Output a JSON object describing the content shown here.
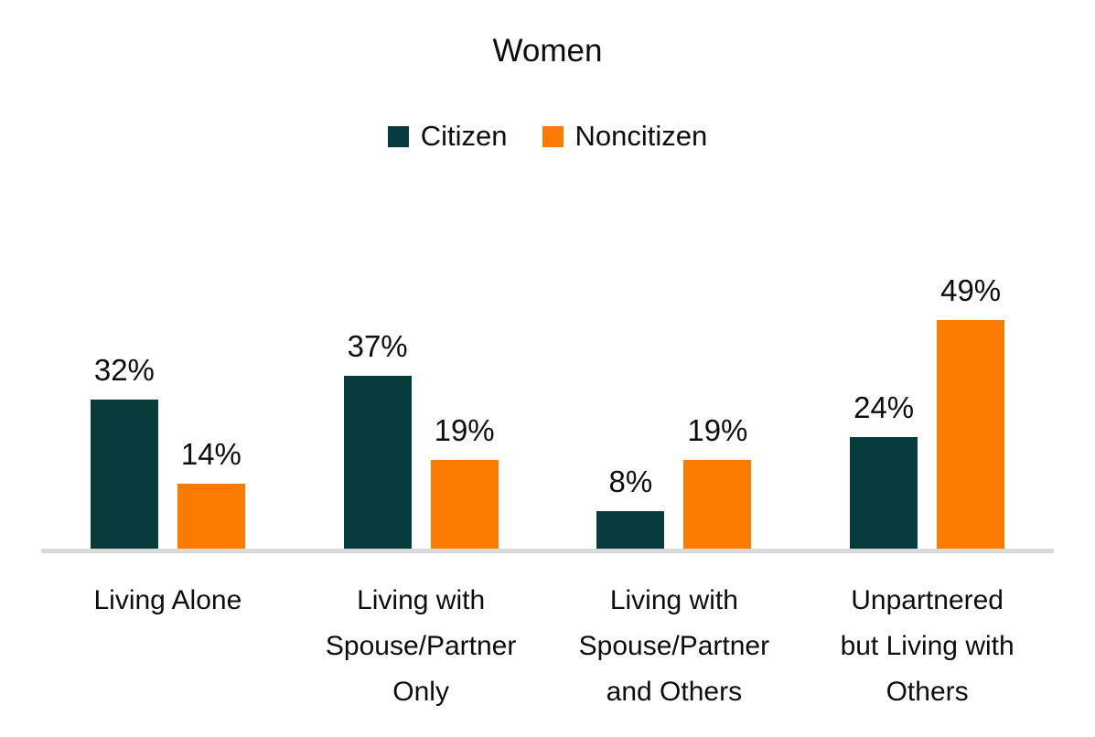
{
  "chart": {
    "title": "Women",
    "legend": {
      "citizen_label": "Citizen",
      "noncitizen_label": "Noncitizen"
    },
    "colors": {
      "citizen": "#073b3c",
      "noncitizen": "#fb7a00",
      "axis_line": "#d9d9d9",
      "text": "#0d0d0d"
    },
    "categories_multiline": [
      "Living Alone",
      "Living with\nSpouse/Partner\nOnly",
      "Living with\nSpouse/Partner\nand Others",
      "Unpartnered\nbut Living with\nOthers"
    ]
  },
  "chart_data": {
    "type": "bar",
    "title": "Women",
    "categories": [
      "Living Alone",
      "Living with Spouse/Partner Only",
      "Living with Spouse/Partner and Others",
      "Unpartnered but Living with Others"
    ],
    "series": [
      {
        "name": "Citizen",
        "color": "#073b3c",
        "values": [
          32,
          37,
          8,
          24
        ],
        "labels": [
          "32%",
          "37%",
          "8%",
          "24%"
        ]
      },
      {
        "name": "Noncitizen",
        "color": "#fb7a00",
        "values": [
          14,
          19,
          19,
          49
        ],
        "labels": [
          "14%",
          "19%",
          "19%",
          "49%"
        ]
      }
    ],
    "unit": "%",
    "ylim": [
      0,
      55
    ],
    "grid": false,
    "y_axis_visible": false,
    "legend_position": "top-center",
    "value_labels": "above-bars"
  }
}
